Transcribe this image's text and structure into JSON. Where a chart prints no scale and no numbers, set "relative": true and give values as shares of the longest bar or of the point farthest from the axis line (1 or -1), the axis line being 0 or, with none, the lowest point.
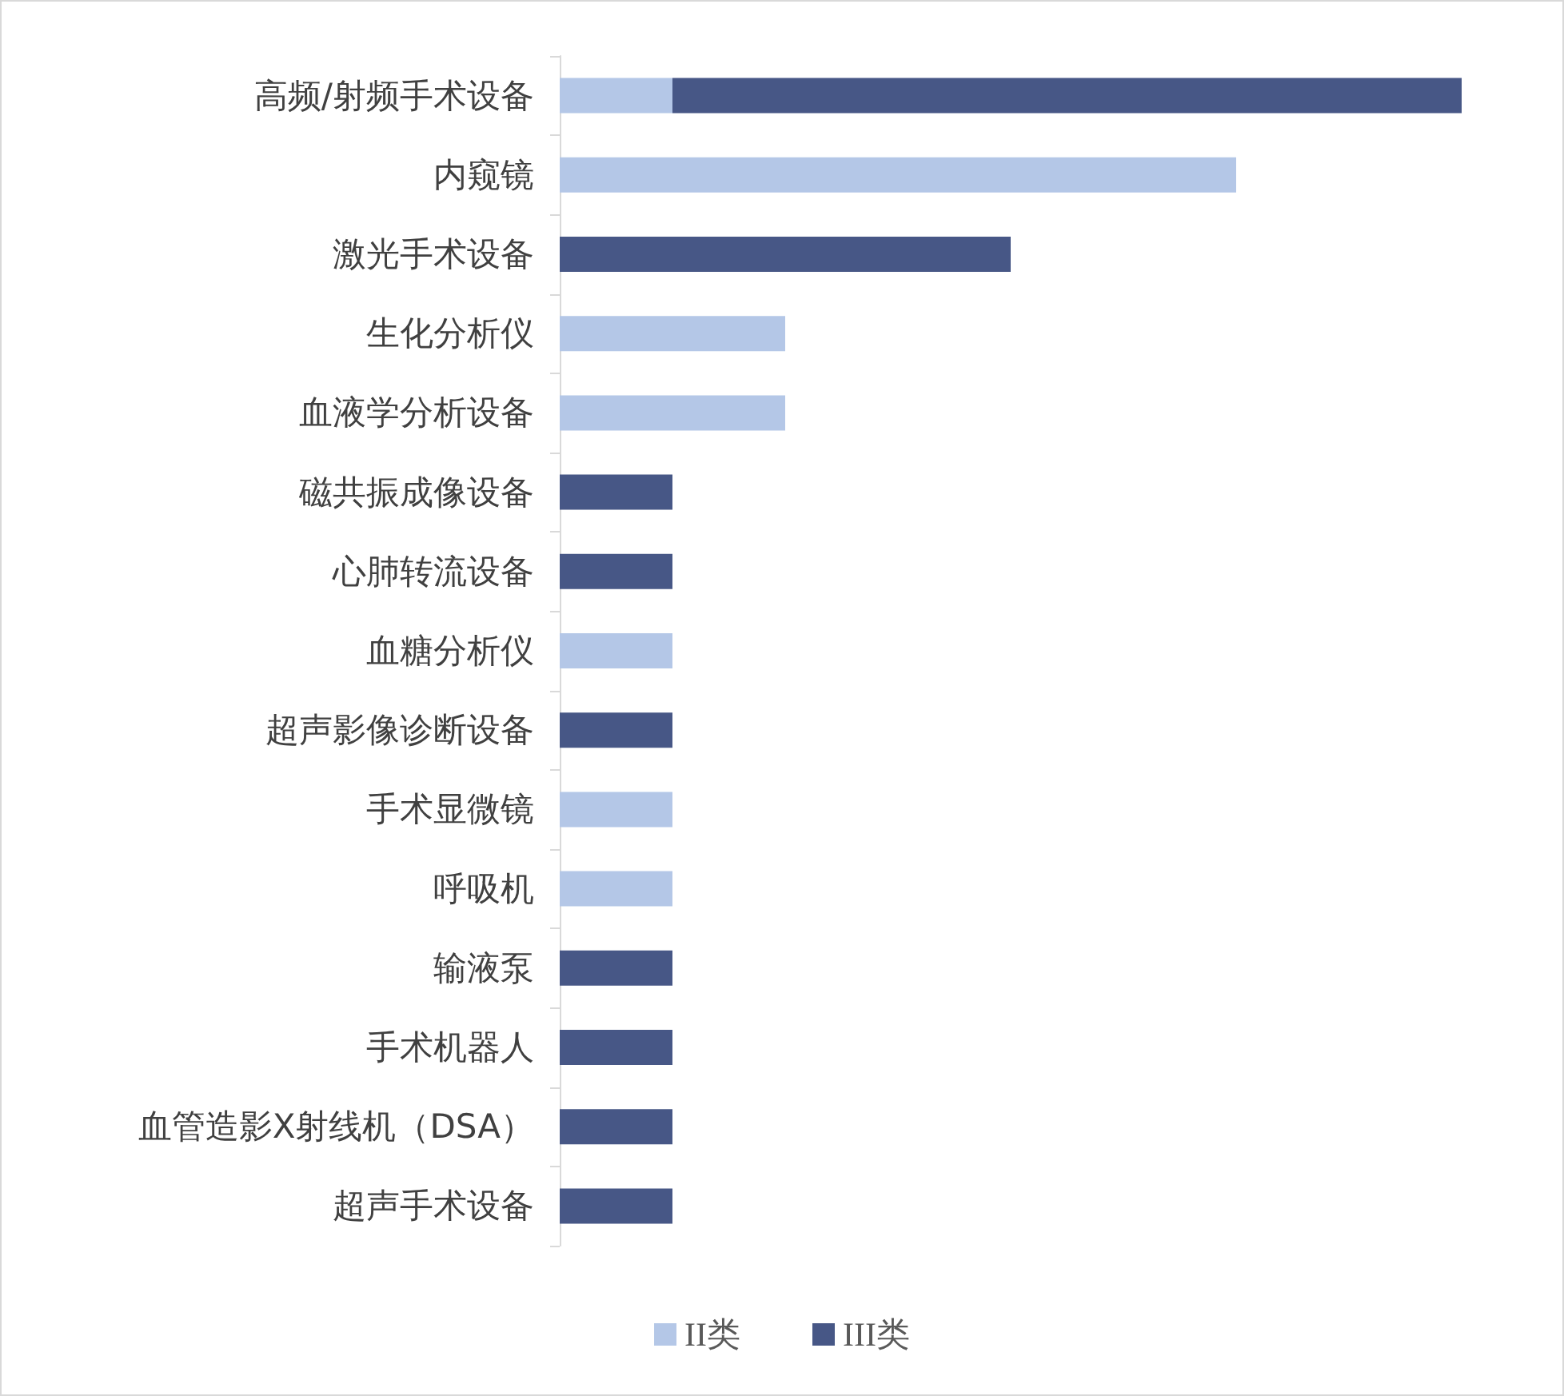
{
  "chart_data": {
    "type": "bar",
    "orientation": "horizontal",
    "stacked": true,
    "relative": true,
    "legend": "bottom",
    "categories": [
      "高频/射频手术设备",
      "内窥镜",
      "激光手术设备",
      "生化分析仪",
      "血液学分析设备",
      "磁共振成像设备",
      "心肺转流设备",
      "血糖分析仪",
      "超声影像诊断设备",
      "手术显微镜",
      "呼吸机",
      "输液泵",
      "手术机器人",
      "血管造影X射线机（DSA）",
      "超声手术设备"
    ],
    "series": [
      {
        "name": "II类",
        "color": "#b4c7e7",
        "values": [
          0.125,
          0.75,
          null,
          0.25,
          0.25,
          null,
          null,
          0.125,
          null,
          0.125,
          0.125,
          null,
          null,
          null,
          null
        ]
      },
      {
        "name": "III类",
        "color": "#475786",
        "values": [
          0.875,
          null,
          0.5,
          null,
          null,
          0.125,
          0.125,
          null,
          0.125,
          null,
          null,
          0.125,
          0.125,
          0.125,
          0.125
        ]
      }
    ]
  }
}
